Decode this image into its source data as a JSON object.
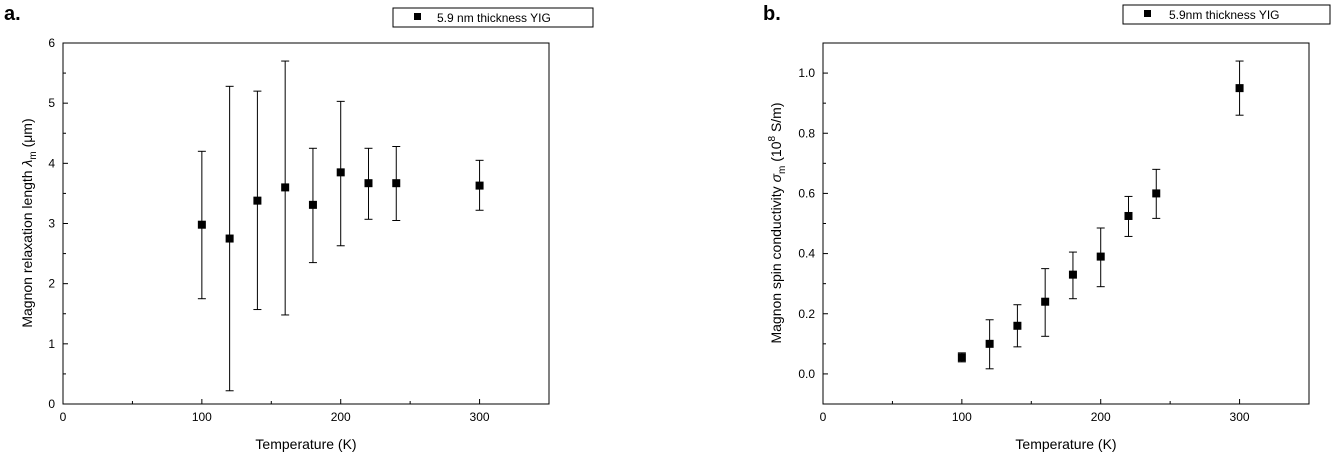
{
  "chart_data": [
    {
      "type": "scatter",
      "panel_label": "a.",
      "xlabel": "Temperature (K)",
      "ylabel_main": "Magnon relaxation length ",
      "ylabel_symbol": "λ",
      "ylabel_sub": "m",
      "ylabel_unit": " (μm)",
      "xlim": [
        0,
        350
      ],
      "ylim": [
        0,
        6
      ],
      "xticks": [
        0,
        100,
        200,
        300
      ],
      "yticks": [
        0,
        1,
        2,
        3,
        4,
        5,
        6
      ],
      "series": [
        {
          "name": "5.9 nm thickness YIG",
          "marker": "square",
          "color": "#000000",
          "points": [
            {
              "x": 100,
              "y": 2.98,
              "err_low": 1.75,
              "err_high": 4.2
            },
            {
              "x": 120,
              "y": 2.75,
              "err_low": 0.22,
              "err_high": 5.28
            },
            {
              "x": 140,
              "y": 3.38,
              "err_low": 1.57,
              "err_high": 5.2
            },
            {
              "x": 160,
              "y": 3.6,
              "err_low": 1.48,
              "err_high": 5.7
            },
            {
              "x": 180,
              "y": 3.31,
              "err_low": 2.35,
              "err_high": 4.25
            },
            {
              "x": 200,
              "y": 3.85,
              "err_low": 2.63,
              "err_high": 5.03
            },
            {
              "x": 220,
              "y": 3.67,
              "err_low": 3.07,
              "err_high": 4.25
            },
            {
              "x": 240,
              "y": 3.67,
              "err_low": 3.05,
              "err_high": 4.28
            },
            {
              "x": 300,
              "y": 3.63,
              "err_low": 3.22,
              "err_high": 4.05
            }
          ]
        }
      ],
      "legend_position": "top-right, outside plot"
    },
    {
      "type": "scatter",
      "panel_label": "b.",
      "xlabel": "Temperature (K)",
      "ylabel_main": "Magnon spin conductivity ",
      "ylabel_symbol": "σ",
      "ylabel_sub": "m",
      "ylabel_unit_pre": " (10",
      "ylabel_sup": "8",
      "ylabel_unit_post": " S/m)",
      "xlim": [
        0,
        350
      ],
      "ylim": [
        -0.1,
        1.1
      ],
      "xticks": [
        0,
        100,
        200,
        300
      ],
      "yticks": [
        0.0,
        0.2,
        0.4,
        0.6,
        0.8,
        1.0
      ],
      "ytick_labels": [
        "0.0",
        "0.2",
        "0.4",
        "0.6",
        "0.8",
        "1.0"
      ],
      "series": [
        {
          "name": "5.9nm thickness YIG",
          "marker": "square",
          "color": "#000000",
          "points": [
            {
              "x": 100,
              "y": 0.055,
              "err_low": 0.04,
              "err_high": 0.07
            },
            {
              "x": 120,
              "y": 0.1,
              "err_low": 0.017,
              "err_high": 0.18
            },
            {
              "x": 140,
              "y": 0.16,
              "err_low": 0.09,
              "err_high": 0.23
            },
            {
              "x": 160,
              "y": 0.24,
              "err_low": 0.125,
              "err_high": 0.35
            },
            {
              "x": 180,
              "y": 0.33,
              "err_low": 0.25,
              "err_high": 0.405
            },
            {
              "x": 200,
              "y": 0.39,
              "err_low": 0.29,
              "err_high": 0.485
            },
            {
              "x": 220,
              "y": 0.525,
              "err_low": 0.457,
              "err_high": 0.59
            },
            {
              "x": 240,
              "y": 0.6,
              "err_low": 0.517,
              "err_high": 0.68
            },
            {
              "x": 300,
              "y": 0.95,
              "err_low": 0.86,
              "err_high": 1.04
            }
          ]
        }
      ],
      "legend_position": "top-right, outside plot"
    }
  ]
}
